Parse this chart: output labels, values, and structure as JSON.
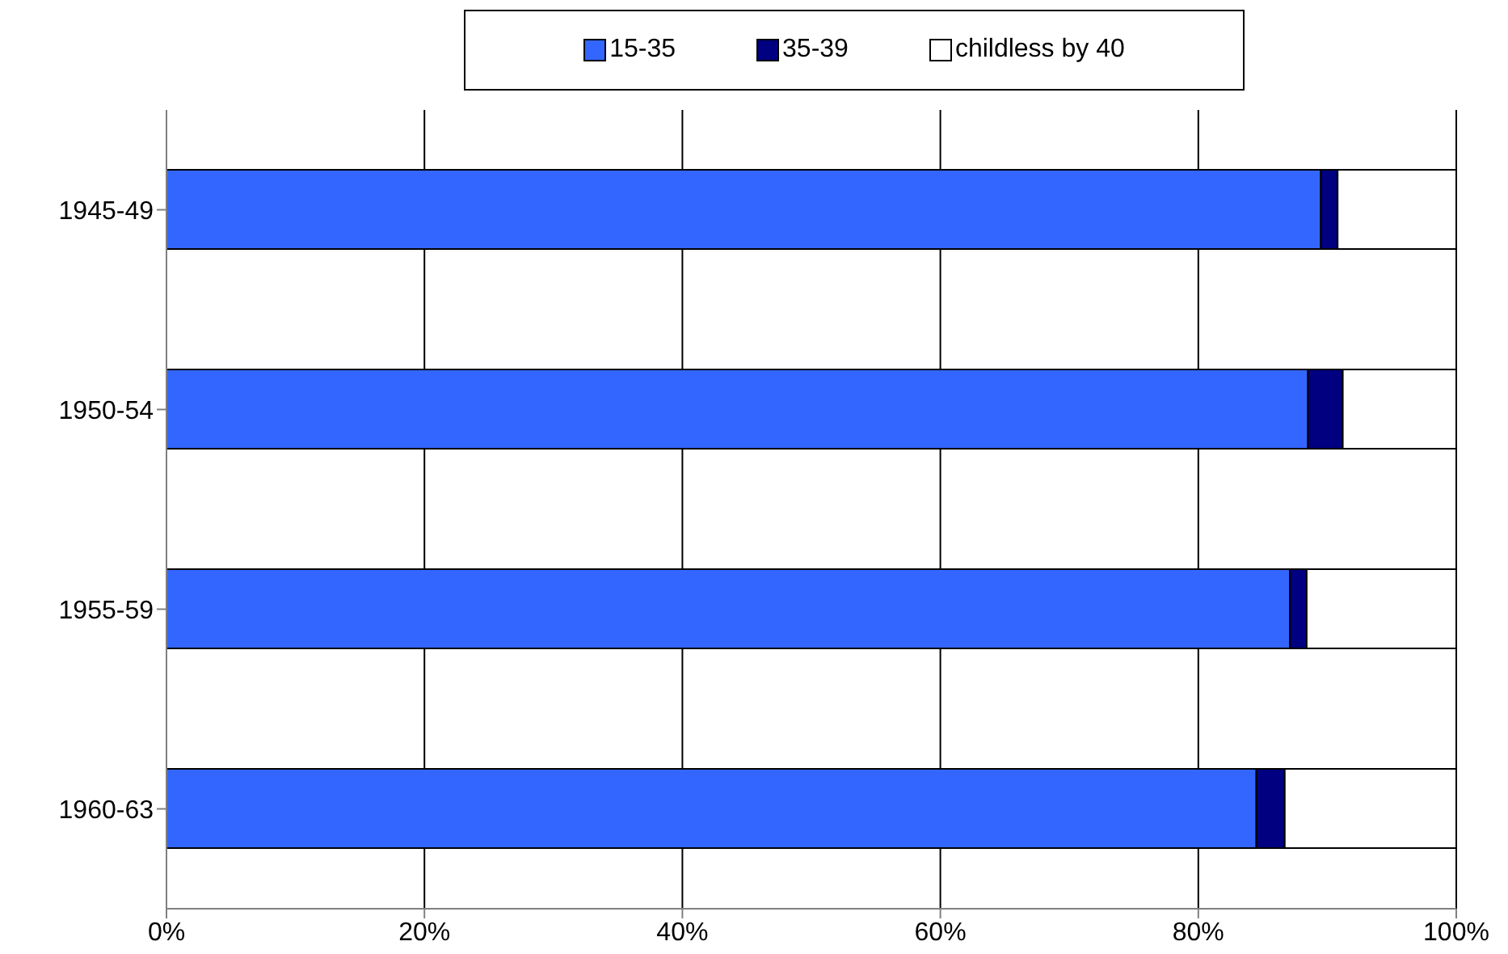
{
  "chart_data": {
    "type": "bar",
    "orientation": "horizontal",
    "stacked": true,
    "categories": [
      "1945-49",
      "1950-54",
      "1955-59",
      "1960-63"
    ],
    "series": [
      {
        "name": "15-35",
        "color": "#3366ff",
        "values": [
          89.5,
          88.5,
          87.1,
          84.5
        ]
      },
      {
        "name": "35-39",
        "color": "#000080",
        "values": [
          1.3,
          2.7,
          1.3,
          2.2
        ]
      },
      {
        "name": "childless by 40",
        "color": "#ffffff",
        "values": [
          9.2,
          8.8,
          11.6,
          13.3
        ]
      }
    ],
    "xlim": [
      0,
      100
    ],
    "xticks": [
      {
        "value": 0,
        "label": "0%"
      },
      {
        "value": 20,
        "label": "20%"
      },
      {
        "value": 40,
        "label": "40%"
      },
      {
        "value": 60,
        "label": "60%"
      },
      {
        "value": 80,
        "label": "80%"
      },
      {
        "value": 100,
        "label": "100%"
      }
    ],
    "grid": "x",
    "legend": "top"
  }
}
